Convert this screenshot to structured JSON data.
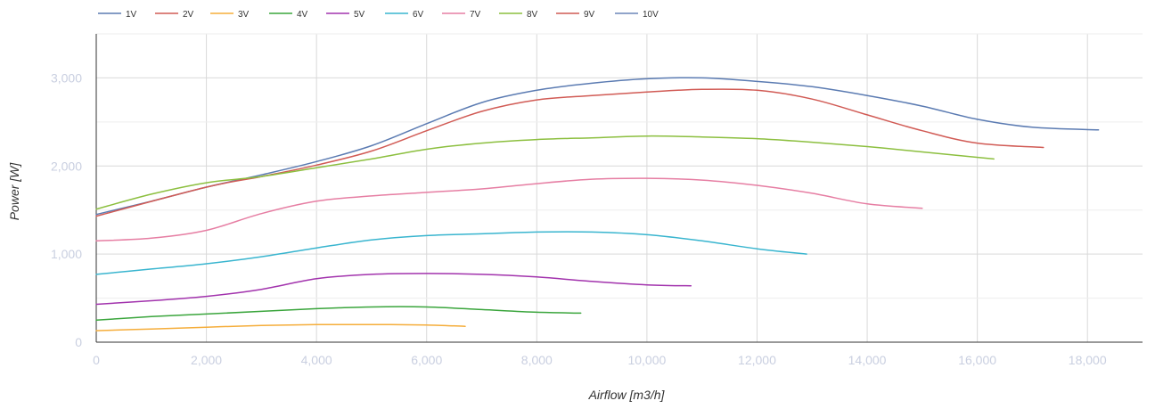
{
  "chart_data": {
    "type": "line",
    "xlabel": "Airflow [m3/h]",
    "ylabel": "Power [W]",
    "xlim": [
      0,
      19000
    ],
    "ylim": [
      0,
      3500
    ],
    "x_ticks": [
      0,
      2000,
      4000,
      6000,
      8000,
      10000,
      12000,
      14000,
      16000,
      18000
    ],
    "x_tick_labels": [
      "0",
      "2,000",
      "4,000",
      "6,000",
      "8,000",
      "10,000",
      "12,000",
      "14,000",
      "16,000",
      "18,000"
    ],
    "y_ticks": [
      0,
      1000,
      2000,
      3000
    ],
    "y_tick_labels": [
      "0",
      "1,000",
      "2,000",
      "3,000"
    ],
    "grid": true,
    "legend_position": "top-left",
    "series": [
      {
        "name": "1V",
        "color": "#5b7bb2",
        "x": [
          0,
          1000,
          2000,
          3000,
          4000,
          5000,
          6000,
          7000,
          8000,
          9000,
          10000,
          11000,
          12000,
          13000,
          14000,
          15000,
          16000,
          17000,
          18200
        ],
        "y": [
          1450,
          1600,
          1760,
          1900,
          2050,
          2230,
          2480,
          2720,
          2860,
          2940,
          2990,
          3000,
          2960,
          2900,
          2800,
          2680,
          2530,
          2440,
          2410
        ]
      },
      {
        "name": "2V",
        "color": "#d15b55",
        "x": [
          0,
          2000,
          3000,
          4000,
          5000,
          6000,
          7000,
          8000,
          9000,
          10000,
          11000,
          12000,
          13000,
          14000,
          15000,
          16000,
          17200
        ],
        "y": [
          1430,
          1760,
          1880,
          2010,
          2170,
          2400,
          2620,
          2750,
          2800,
          2840,
          2870,
          2860,
          2760,
          2580,
          2400,
          2260,
          2210
        ]
      },
      {
        "name": "3V",
        "color": "#f5ad3a",
        "x": [
          0,
          1000,
          2000,
          3000,
          4000,
          5000,
          6000,
          6700
        ],
        "y": [
          130,
          150,
          170,
          190,
          200,
          200,
          195,
          180
        ]
      },
      {
        "name": "4V",
        "color": "#3aa53c",
        "x": [
          0,
          1000,
          2000,
          3000,
          4000,
          5000,
          6000,
          7000,
          8000,
          8800
        ],
        "y": [
          250,
          290,
          320,
          350,
          380,
          400,
          400,
          370,
          340,
          330
        ]
      },
      {
        "name": "5V",
        "color": "#a233ad",
        "x": [
          0,
          1000,
          2000,
          3000,
          4000,
          5000,
          6000,
          7000,
          8000,
          9000,
          10000,
          10800
        ],
        "y": [
          430,
          470,
          520,
          600,
          720,
          770,
          780,
          770,
          740,
          690,
          650,
          640
        ]
      },
      {
        "name": "6V",
        "color": "#39b5cf",
        "x": [
          0,
          1000,
          2000,
          3000,
          4000,
          5000,
          6000,
          7000,
          8000,
          9000,
          10000,
          11000,
          12000,
          12900
        ],
        "y": [
          770,
          830,
          890,
          970,
          1070,
          1160,
          1210,
          1230,
          1250,
          1250,
          1220,
          1150,
          1060,
          1000
        ]
      },
      {
        "name": "7V",
        "color": "#e67ea3",
        "x": [
          0,
          1000,
          2000,
          3000,
          4000,
          5000,
          6000,
          7000,
          8000,
          9000,
          10000,
          11000,
          12000,
          13000,
          14000,
          15000
        ],
        "y": [
          1150,
          1180,
          1270,
          1460,
          1600,
          1660,
          1700,
          1740,
          1800,
          1850,
          1860,
          1840,
          1780,
          1690,
          1570,
          1520
        ]
      },
      {
        "name": "8V",
        "color": "#8cbf3f",
        "x": [
          0,
          1000,
          2000,
          3000,
          4000,
          5000,
          6000,
          7000,
          8000,
          9000,
          10000,
          11000,
          12000,
          13000,
          14000,
          15000,
          16300
        ],
        "y": [
          1510,
          1680,
          1810,
          1880,
          1980,
          2080,
          2190,
          2260,
          2300,
          2320,
          2340,
          2330,
          2310,
          2270,
          2220,
          2160,
          2080
        ]
      },
      {
        "name": "9V",
        "color": "#cf5a54",
        "x": [],
        "y": []
      },
      {
        "name": "10V",
        "color": "#6b86b8",
        "x": [],
        "y": []
      }
    ]
  }
}
